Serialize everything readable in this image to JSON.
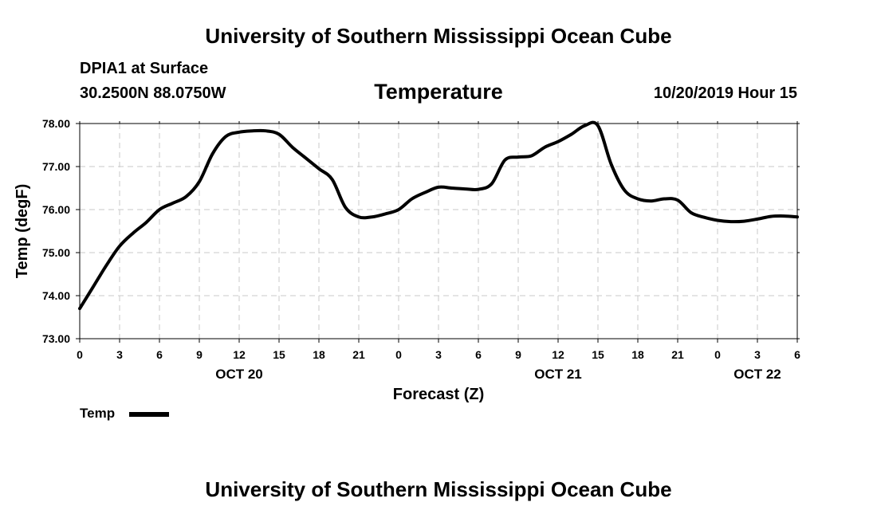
{
  "header": {
    "title_top": "University of Southern Mississippi Ocean Cube",
    "station": "DPIA1 at Surface",
    "coords": "30.2500N 88.0750W",
    "parameter": "Temperature",
    "datetime": "10/20/2019 Hour 15"
  },
  "footer": {
    "title_bottom": "University of Southern Mississippi Ocean Cube"
  },
  "colors": {
    "line": "#000000",
    "grid": "#c8c8c8",
    "axis": "#000000"
  },
  "chart_data": {
    "type": "line",
    "title": "Temperature",
    "xlabel": "Forecast (Z)",
    "ylabel": "Temp (degF)",
    "ylim": [
      73.0,
      78.0
    ],
    "xlim": [
      0,
      54
    ],
    "grid": true,
    "legend": "bottom-left",
    "y_ticks": [
      "73.00",
      "74.00",
      "75.00",
      "76.00",
      "77.00",
      "78.00"
    ],
    "y_tick_values": [
      73,
      74,
      75,
      76,
      77,
      78
    ],
    "x_tick_values": [
      0,
      3,
      6,
      9,
      12,
      15,
      18,
      21,
      24,
      27,
      30,
      33,
      36,
      39,
      42,
      45,
      48,
      51,
      54
    ],
    "x_tick_labels": [
      "0",
      "3",
      "6",
      "9",
      "12",
      "15",
      "18",
      "21",
      "0",
      "3",
      "6",
      "9",
      "12",
      "15",
      "18",
      "21",
      "0",
      "3",
      "6"
    ],
    "day_labels": [
      {
        "x": 12,
        "label": "OCT 20"
      },
      {
        "x": 36,
        "label": "OCT 21"
      },
      {
        "x": 51,
        "label": "OCT 22"
      }
    ],
    "series": [
      {
        "name": "Temp",
        "x": [
          0,
          1,
          2,
          3,
          4,
          5,
          6,
          7,
          8,
          9,
          10,
          11,
          12,
          13,
          14,
          15,
          16,
          17,
          18,
          19,
          20,
          21,
          22,
          23,
          24,
          25,
          26,
          27,
          28,
          29,
          30,
          31,
          32,
          33,
          34,
          35,
          36,
          37,
          38,
          39,
          40,
          41,
          42,
          43,
          44,
          45,
          46,
          47,
          48,
          49,
          50,
          51,
          52,
          53,
          54
        ],
        "values": [
          73.7,
          74.2,
          74.7,
          75.15,
          75.45,
          75.7,
          76.0,
          76.15,
          76.3,
          76.65,
          77.3,
          77.7,
          77.8,
          77.83,
          77.83,
          77.75,
          77.45,
          77.2,
          76.95,
          76.7,
          76.05,
          75.83,
          75.83,
          75.9,
          76.0,
          76.25,
          76.4,
          76.52,
          76.5,
          76.48,
          76.47,
          76.6,
          77.15,
          77.22,
          77.25,
          77.45,
          77.58,
          77.75,
          77.95,
          77.95,
          77.05,
          76.45,
          76.25,
          76.2,
          76.25,
          76.22,
          75.93,
          75.82,
          75.75,
          75.72,
          75.73,
          75.78,
          75.84,
          75.85,
          75.83
        ]
      }
    ]
  }
}
